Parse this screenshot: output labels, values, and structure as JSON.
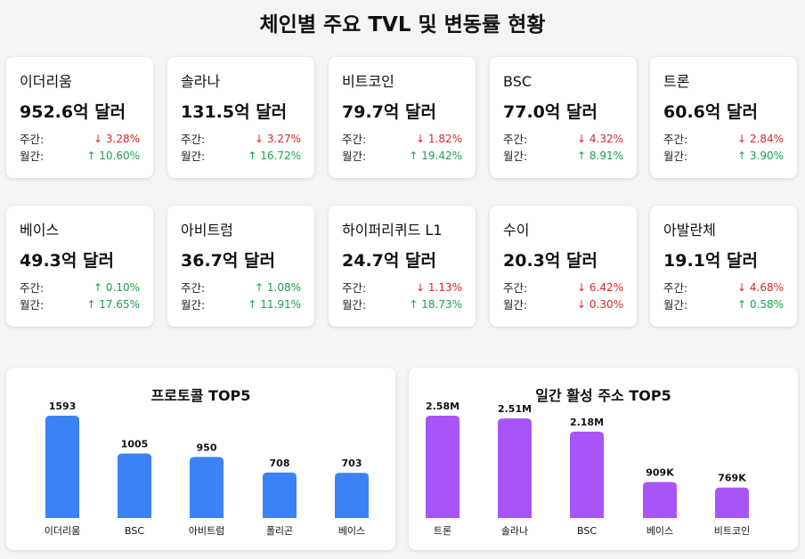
{
  "title": "체인별 주요 TVL 및 변동률 현황",
  "labels": {
    "weekly": "주간:",
    "monthly": "월간:"
  },
  "chains": [
    {
      "name": "이더리움",
      "value": "952.6억 달러",
      "weekly": {
        "dir": "down",
        "text": "↓ 3.28%"
      },
      "monthly": {
        "dir": "up",
        "text": "↑ 10.60%"
      }
    },
    {
      "name": "솔라나",
      "value": "131.5억 달러",
      "weekly": {
        "dir": "down",
        "text": "↓ 3.27%"
      },
      "monthly": {
        "dir": "up",
        "text": "↑ 16.72%"
      }
    },
    {
      "name": "비트코인",
      "value": "79.7억 달러",
      "weekly": {
        "dir": "down",
        "text": "↓ 1.82%"
      },
      "monthly": {
        "dir": "up",
        "text": "↑ 19.42%"
      }
    },
    {
      "name": "BSC",
      "value": "77.0억 달러",
      "weekly": {
        "dir": "down",
        "text": "↓ 4.32%"
      },
      "monthly": {
        "dir": "up",
        "text": "↑ 8.91%"
      }
    },
    {
      "name": "트론",
      "value": "60.6억 달러",
      "weekly": {
        "dir": "down",
        "text": "↓ 2.84%"
      },
      "monthly": {
        "dir": "up",
        "text": "↑ 3.90%"
      }
    },
    {
      "name": "베이스",
      "value": "49.3억 달러",
      "weekly": {
        "dir": "up",
        "text": "↑ 0.10%"
      },
      "monthly": {
        "dir": "up",
        "text": "↑ 17.65%"
      }
    },
    {
      "name": "아비트럼",
      "value": "36.7억 달러",
      "weekly": {
        "dir": "up",
        "text": "↑ 1.08%"
      },
      "monthly": {
        "dir": "up",
        "text": "↑ 11.91%"
      }
    },
    {
      "name": "하이퍼리퀴드 L1",
      "value": "24.7억 달러",
      "weekly": {
        "dir": "down",
        "text": "↓ 1.13%"
      },
      "monthly": {
        "dir": "up",
        "text": "↑ 18.73%"
      }
    },
    {
      "name": "수이",
      "value": "20.3억 달러",
      "weekly": {
        "dir": "down",
        "text": "↓ 6.42%"
      },
      "monthly": {
        "dir": "down",
        "text": "↓ 0.30%"
      }
    },
    {
      "name": "아발란체",
      "value": "19.1억 달러",
      "weekly": {
        "dir": "down",
        "text": "↓ 4.68%"
      },
      "monthly": {
        "dir": "up",
        "text": "↑ 0.58%"
      }
    }
  ],
  "colors": {
    "up": "#16a34a",
    "down": "#dc2626",
    "protocol_bar": "#3b82f6",
    "address_bar": "#a855f7"
  },
  "chart_data": [
    {
      "type": "bar",
      "title": "프로토콜 TOP5",
      "categories": [
        "이더리움",
        "BSC",
        "아비트럼",
        "폴리곤",
        "베이스"
      ],
      "values": [
        1593,
        1005,
        950,
        708,
        703
      ],
      "value_labels": [
        "1593",
        "1005",
        "950",
        "708",
        "703"
      ],
      "color": "#3b82f6"
    },
    {
      "type": "bar",
      "title": "일간 활성 주소 TOP5",
      "categories": [
        "트론",
        "솔라나",
        "BSC",
        "베이스",
        "비트코인"
      ],
      "values": [
        2580000,
        2510000,
        2180000,
        909000,
        769000
      ],
      "value_labels": [
        "2.58M",
        "2.51M",
        "2.18M",
        "909K",
        "769K"
      ],
      "color": "#a855f7"
    }
  ]
}
